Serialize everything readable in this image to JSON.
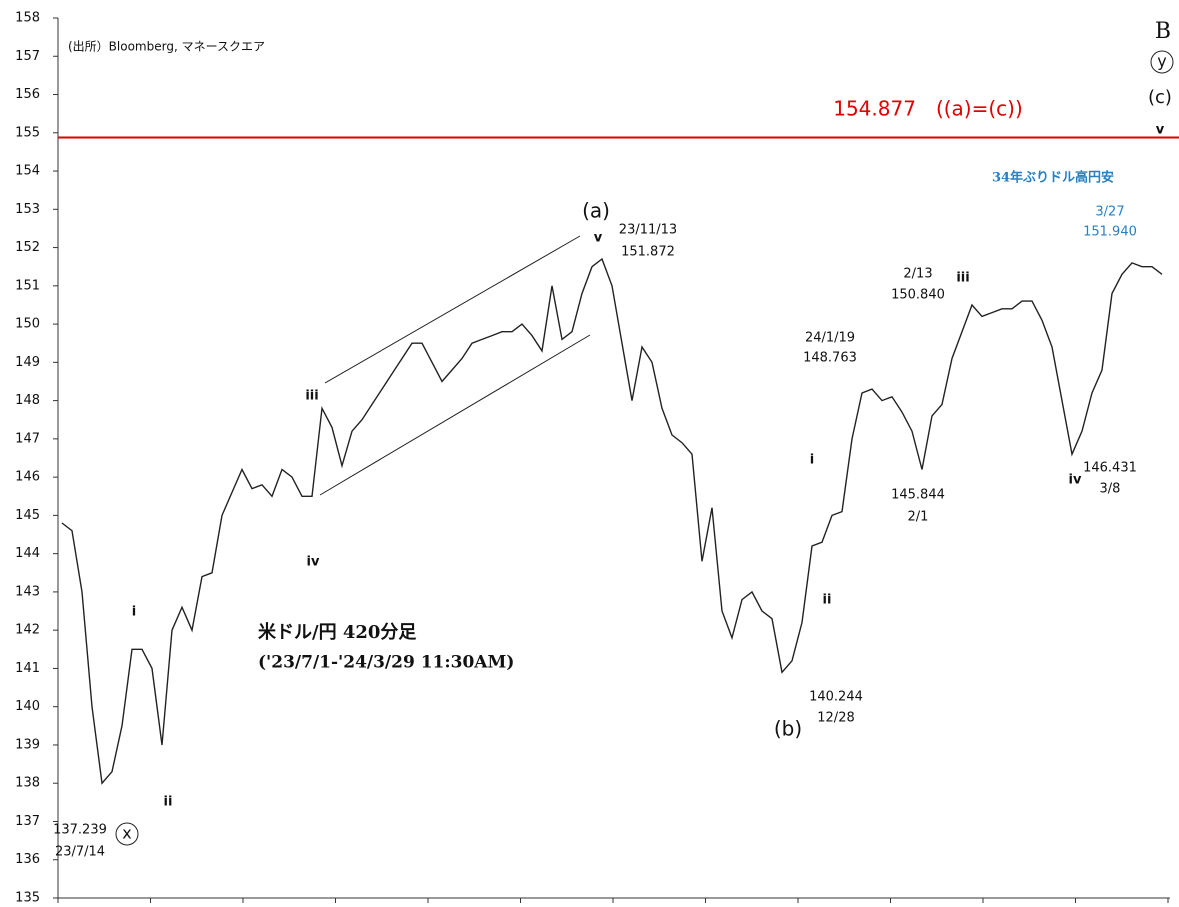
{
  "chart_data": {
    "type": "line",
    "values": [
      144.8,
      144.6,
      143,
      140,
      138,
      138.3,
      139.5,
      141.5,
      141.5,
      141,
      139,
      142,
      142.6,
      142,
      143.4,
      143.5,
      145,
      145.6,
      146.2,
      145.7,
      145.8,
      145.5,
      146.2,
      146,
      145.5,
      145.5,
      147.8,
      147.3,
      146.3,
      147.2,
      147.5,
      147.9,
      148.3,
      148.7,
      149.1,
      149.5,
      149.5,
      149,
      148.5,
      148.8,
      149.1,
      149.5,
      149.6,
      149.7,
      149.8,
      149.8,
      150,
      149.7,
      149.3,
      151,
      149.6,
      149.8,
      150.8,
      151.5,
      151.7,
      151,
      149.5,
      148,
      149.4,
      149,
      147.8,
      147.1,
      146.9,
      146.6,
      143.8,
      145.2,
      142.5,
      141.8,
      142.8,
      143,
      142.5,
      142.3,
      140.9,
      141.2,
      142.2,
      144.2,
      144.3,
      145,
      145.1,
      147,
      148.2,
      148.3,
      148,
      148.1,
      147.7,
      147.2,
      146.2,
      147.6,
      147.9,
      149.1,
      149.8,
      150.5,
      150.2,
      150.3,
      150.4,
      150.4,
      150.6,
      150.6,
      150.1,
      149.4,
      148,
      146.6,
      147.2,
      148.2,
      148.8,
      150.8,
      151.3,
      151.6,
      151.5,
      151.5,
      151.3
    ],
    "color": "#222222",
    "ylim": [
      135,
      158
    ],
    "yticks": [
      135,
      136,
      137,
      138,
      139,
      140,
      141,
      142,
      143,
      144,
      145,
      146,
      147,
      148,
      149,
      150,
      151,
      152,
      153,
      154,
      155,
      156,
      157,
      158
    ],
    "reference_line": {
      "value": 154.877,
      "label": "154.877　((a)=(c))",
      "color": "#e00000"
    },
    "annotations": [
      "(出所）Bloomberg, マネースクエア",
      "B",
      "y",
      "(c)",
      "v",
      "34年ぶりドル高円安",
      "3/27",
      "151.940",
      "(a)",
      "v",
      "23/11/13",
      "151.872",
      "iii",
      "iv",
      "i",
      "ii",
      "x",
      "137.239",
      "23/7/14",
      "米ドル/円 420分足",
      "('23/7/1-'24/3/29 11:30AM)",
      "140.244",
      "12/28",
      "(b)",
      "i",
      "ii",
      "24/1/19",
      "148.763",
      "2/13",
      "150.840",
      "iii",
      "145.844",
      "2/1",
      "iv",
      "146.431",
      "3/8"
    ]
  }
}
